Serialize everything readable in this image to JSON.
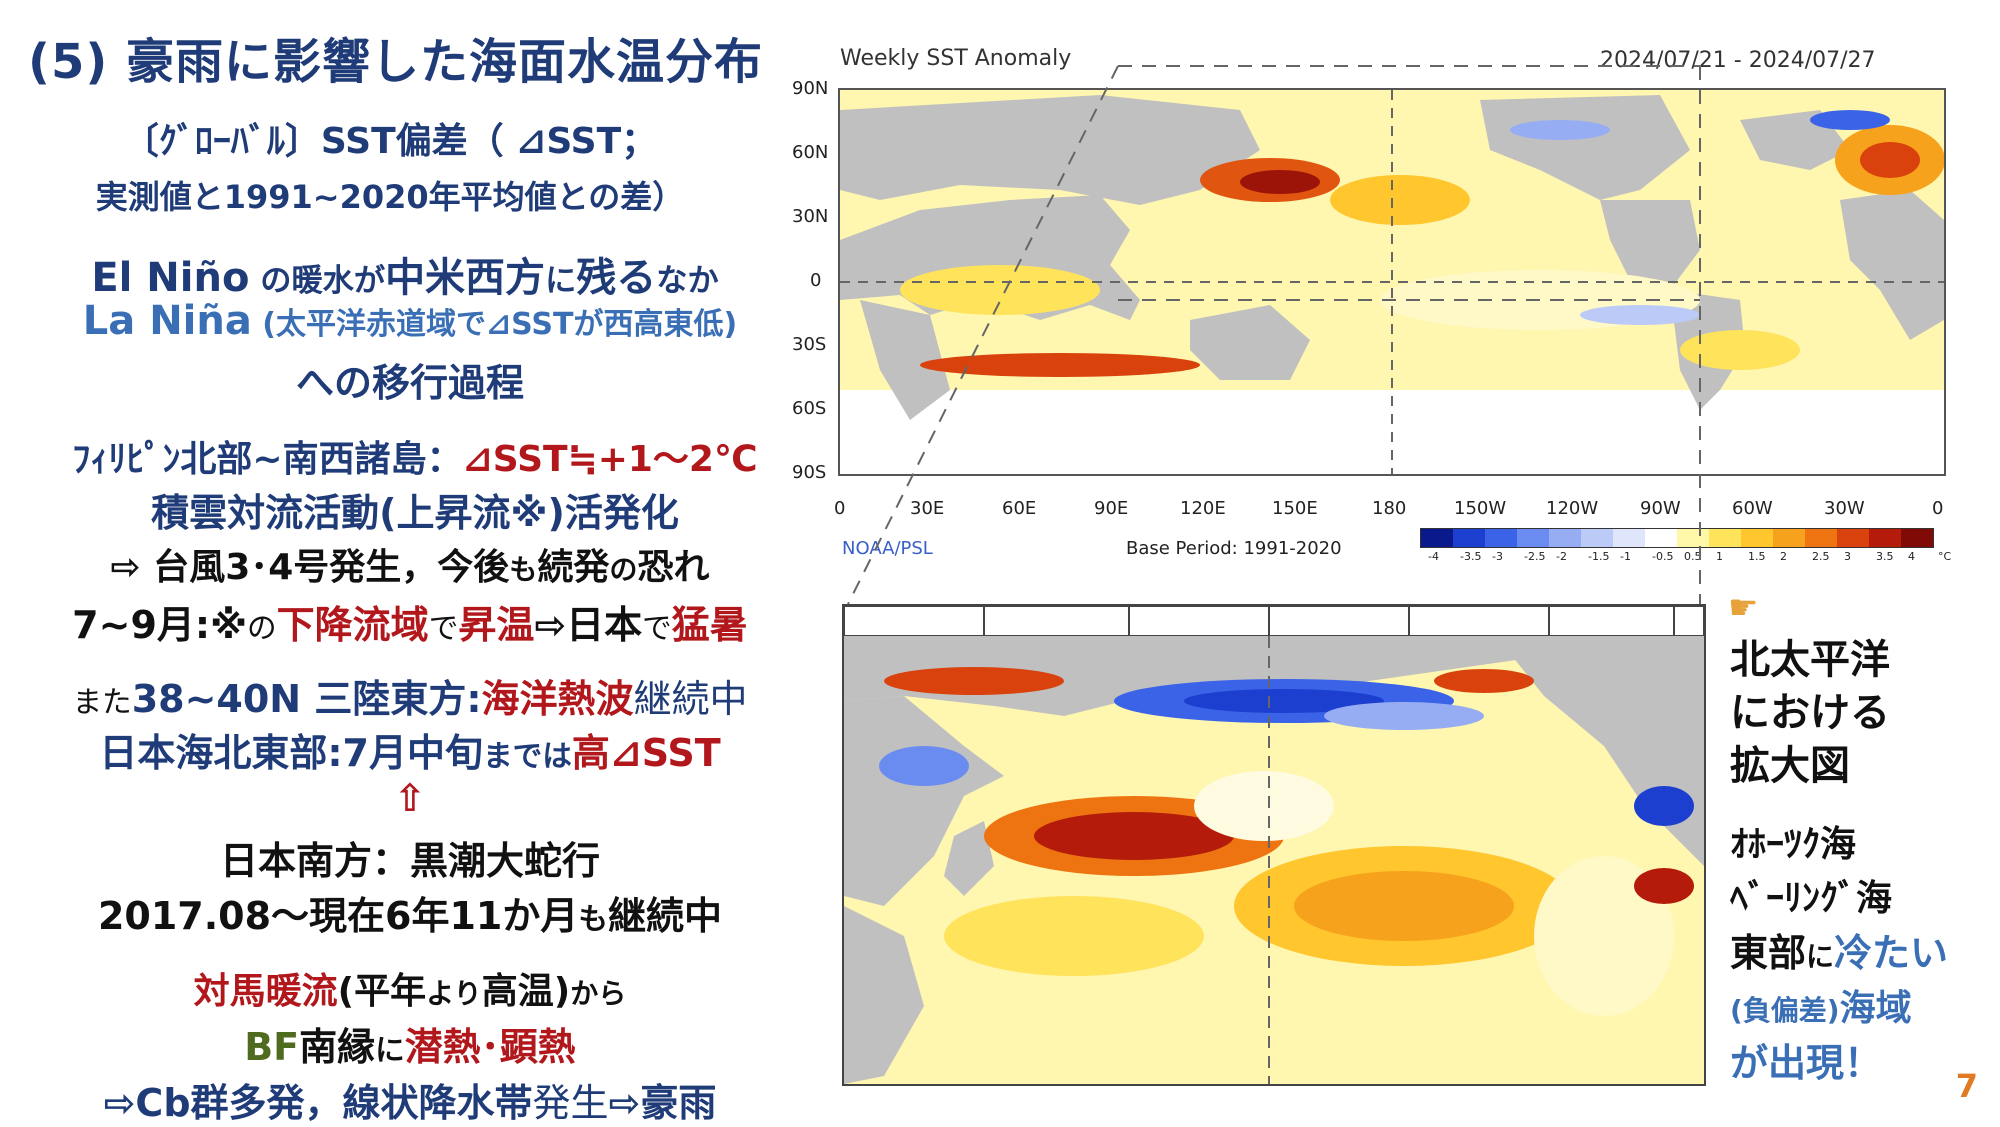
{
  "title": "(5) 豪雨に影響した海面水温分布",
  "left": {
    "l1": "〔ｸﾞﾛｰﾊﾞﾙ〕SST偏差（ ⊿SST；",
    "l2": "実測値と1991~2020年平均値との差）",
    "l3a": "El Niño",
    "l3b": " の暖水",
    "l3c": "が",
    "l3d": "中米西方",
    "l3e": "に",
    "l3f": "残る",
    "l3g": "なか",
    "l4a": "La Niña",
    "l4b": " (太平洋赤道域で⊿SSTが西高東低)",
    "l5": "への移行過程",
    "l6a": "ﾌｨﾘﾋﾟﾝ北部~南西諸島：",
    "l6b": "⊿SST≒+1～2℃",
    "l7": "積雲対流活動(上昇流※)活発化",
    "l8a": "⇨ 台風3･4号発生，今後",
    "l8b": "も",
    "l8c": "続発",
    "l8d": "の",
    "l8e": "恐れ",
    "l9a": "7~9月:※",
    "l9b": "の",
    "l9c": "下降流域",
    "l9d": "で",
    "l9e": "昇温",
    "l9f": "⇨日本",
    "l9g": "で",
    "l9h": "猛暑",
    "l10a": "また",
    "l10b": "38~40N 三陸東方:",
    "l10c": "海洋熱波",
    "l10d": "継続中",
    "l11a": "日本海北東部:7月中旬",
    "l11b": "までは",
    "l11c": "高⊿SST",
    "l12": "⇧",
    "l13": "日本南方：黒潮大蛇行",
    "l14a": "2017.08～現在6年11か月",
    "l14b": "も",
    "l14c": "継続中",
    "l15a": "対馬暖流",
    "l15b": "(平年",
    "l15c": "より",
    "l15d": "高温)",
    "l15e": "から",
    "l16a": "BF",
    "l16b": "南縁",
    "l16c": "に",
    "l16d": "潜熱･顕熱",
    "l17a": "⇨Cb群多発，線状降水帯",
    "l17b": "発生",
    "l17c": "⇨豪雨"
  },
  "map": {
    "header_left": "Weekly SST Anomaly",
    "header_right": "2024/07/21 - 2024/07/27",
    "lat_labels": [
      "90N",
      "60N",
      "30N",
      "0",
      "30S",
      "60S",
      "90S"
    ],
    "lon_labels": [
      "0",
      "30E",
      "60E",
      "90E",
      "120E",
      "150E",
      "180",
      "150W",
      "120W",
      "90W",
      "60W",
      "30W",
      "0"
    ],
    "source": "NOAA/PSL",
    "base_period": "Base Period: 1991-2020",
    "colorbar_ticks": [
      "-4",
      "-3.5",
      "-3",
      "-2.5",
      "-2",
      "-1.5",
      "-1",
      "-0.5",
      "0.5",
      "1",
      "1.5",
      "2",
      "2.5",
      "3",
      "3.5",
      "4"
    ],
    "colorbar_unit": "°C",
    "colorbar_colors": [
      "#0a1a8c",
      "#1c3fd0",
      "#3a63e8",
      "#6a8cf0",
      "#97adf3",
      "#bccaf7",
      "#dfe6fb",
      "#ffffff",
      "#fff7a8",
      "#ffe35a",
      "#ffc62e",
      "#f7a21c",
      "#ee7412",
      "#d9420c",
      "#b51b0a",
      "#7f0a06"
    ]
  },
  "right": {
    "pointer_icon": "hand-pointing-right",
    "r1": "北太平洋",
    "r2": "における",
    "r3": "拡大図",
    "r4": "ｵﾎｰﾂｸ海",
    "r5": "ﾍﾞｰﾘﾝｸﾞ海",
    "r6a": "東部",
    "r6b": "に",
    "r6c": "冷たい",
    "r7a": "(負偏差)",
    "r7b": "海域",
    "r8": "が出現！"
  },
  "page_number": "7"
}
